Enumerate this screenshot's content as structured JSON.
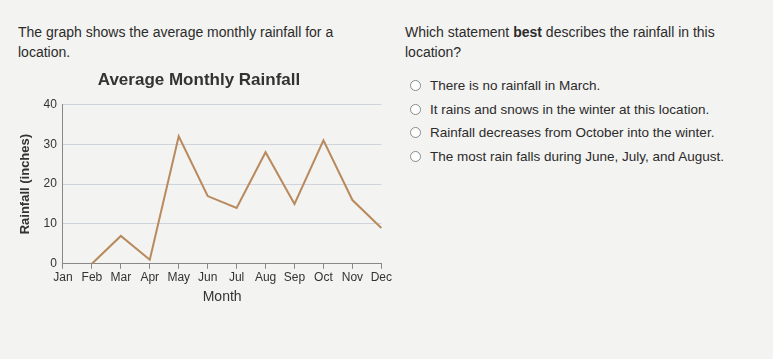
{
  "intro": "The graph shows the average monthly rainfall for a location.",
  "question": {
    "before": "Which statement ",
    "bold": "best",
    "after": " describes the rainfall in this location?"
  },
  "options": [
    "There is no rainfall in March.",
    "It rains and snows in the winter at this location.",
    "Rainfall decreases from October into the winter.",
    "The most rain falls during June, July, and August."
  ],
  "chart_data": {
    "type": "line",
    "title": "Average Monthly Rainfall",
    "categories": [
      "Jan",
      "Feb",
      "Mar",
      "Apr",
      "May",
      "Jun",
      "Jul",
      "Aug",
      "Sep",
      "Oct",
      "Nov",
      "Dec"
    ],
    "values": [
      null,
      0,
      7,
      1,
      32,
      17,
      14,
      28,
      15,
      31,
      16,
      9
    ],
    "color": "#b98a5e",
    "x_label": "Month",
    "y_label": "Rainfall (inches)",
    "ylim": [
      0,
      40
    ],
    "yticks": [
      0,
      10,
      20,
      30,
      40
    ],
    "grid": true
  }
}
